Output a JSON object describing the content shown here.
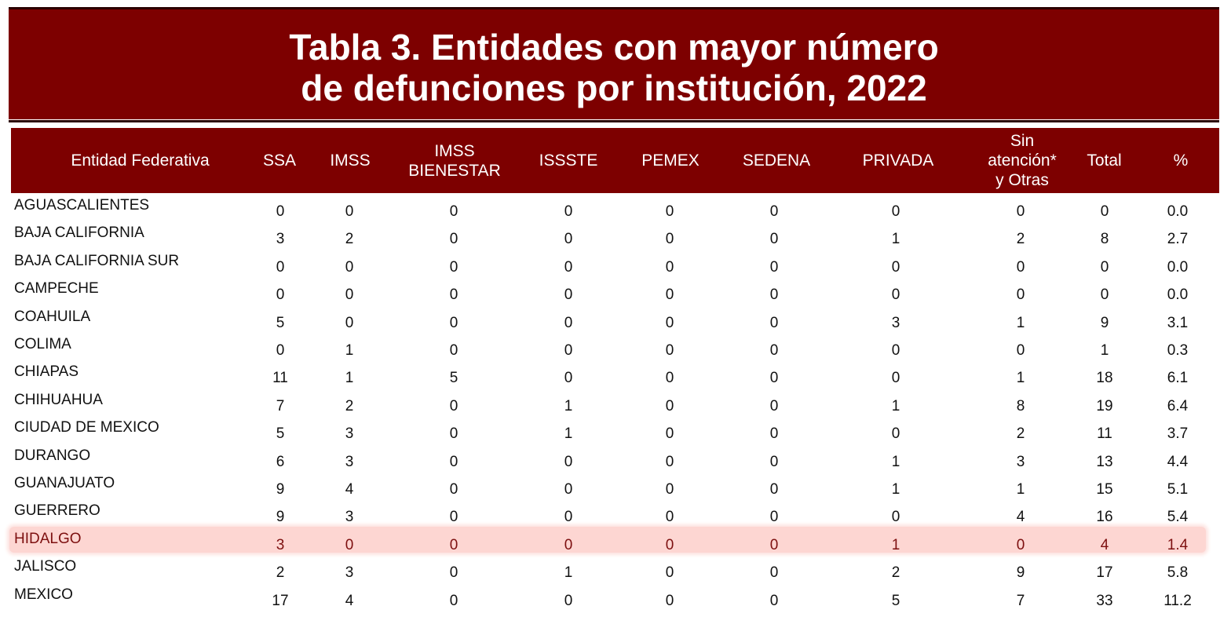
{
  "title": {
    "line1": "Tabla 3. Entidades con mayor número",
    "line2": "de defunciones por institución, 2022"
  },
  "colors": {
    "header_bg": "#7d0000",
    "highlight_bg": "#fdd6d2",
    "highlight_text": "#7d1010"
  },
  "columns": [
    {
      "id": "entidad",
      "label": "Entidad Federativa"
    },
    {
      "id": "ssa",
      "label": "SSA"
    },
    {
      "id": "imss",
      "label": "IMSS"
    },
    {
      "id": "imss_bienestar",
      "label": "IMSS BIENESTAR",
      "line1": "IMSS",
      "line2": "BIENESTAR"
    },
    {
      "id": "issste",
      "label": "ISSSTE"
    },
    {
      "id": "pemex",
      "label": "PEMEX"
    },
    {
      "id": "sedena",
      "label": "SEDENA"
    },
    {
      "id": "privada",
      "label": "PRIVADA"
    },
    {
      "id": "sin_atencion",
      "label": "Sin atención* y Otras",
      "line1": "Sin",
      "line2": "atención*",
      "line3": "y Otras"
    },
    {
      "id": "total",
      "label": "Total"
    },
    {
      "id": "pct",
      "label": "%"
    }
  ],
  "rows": [
    {
      "entidad": "AGUASCALIENTES",
      "values": [
        "0",
        "0",
        "0",
        "0",
        "0",
        "0",
        "0",
        "0",
        "0",
        "0.0"
      ]
    },
    {
      "entidad": "BAJA CALIFORNIA",
      "values": [
        "3",
        "2",
        "0",
        "0",
        "0",
        "0",
        "1",
        "2",
        "8",
        "2.7"
      ]
    },
    {
      "entidad": "BAJA CALIFORNIA SUR",
      "values": [
        "0",
        "0",
        "0",
        "0",
        "0",
        "0",
        "0",
        "0",
        "0",
        "0.0"
      ]
    },
    {
      "entidad": "CAMPECHE",
      "values": [
        "0",
        "0",
        "0",
        "0",
        "0",
        "0",
        "0",
        "0",
        "0",
        "0.0"
      ]
    },
    {
      "entidad": "COAHUILA",
      "values": [
        "5",
        "0",
        "0",
        "0",
        "0",
        "0",
        "3",
        "1",
        "9",
        "3.1"
      ]
    },
    {
      "entidad": "COLIMA",
      "values": [
        "0",
        "1",
        "0",
        "0",
        "0",
        "0",
        "0",
        "0",
        "1",
        "0.3"
      ]
    },
    {
      "entidad": "CHIAPAS",
      "values": [
        "11",
        "1",
        "5",
        "0",
        "0",
        "0",
        "0",
        "1",
        "18",
        "6.1"
      ]
    },
    {
      "entidad": "CHIHUAHUA",
      "values": [
        "7",
        "2",
        "0",
        "1",
        "0",
        "0",
        "1",
        "8",
        "19",
        "6.4"
      ]
    },
    {
      "entidad": "CIUDAD DE MEXICO",
      "values": [
        "5",
        "3",
        "0",
        "1",
        "0",
        "0",
        "0",
        "2",
        "11",
        "3.7"
      ]
    },
    {
      "entidad": "DURANGO",
      "values": [
        "6",
        "3",
        "0",
        "0",
        "0",
        "0",
        "1",
        "3",
        "13",
        "4.4"
      ]
    },
    {
      "entidad": "GUANAJUATO",
      "values": [
        "9",
        "4",
        "0",
        "0",
        "0",
        "0",
        "1",
        "1",
        "15",
        "5.1"
      ]
    },
    {
      "entidad": "GUERRERO",
      "values": [
        "9",
        "3",
        "0",
        "0",
        "0",
        "0",
        "0",
        "4",
        "16",
        "5.4"
      ]
    },
    {
      "entidad": "HIDALGO",
      "values": [
        "3",
        "0",
        "0",
        "0",
        "0",
        "0",
        "1",
        "0",
        "4",
        "1.4"
      ],
      "highlighted": true
    },
    {
      "entidad": "JALISCO",
      "values": [
        "2",
        "3",
        "0",
        "1",
        "0",
        "0",
        "2",
        "9",
        "17",
        "5.8"
      ]
    },
    {
      "entidad": "MEXICO",
      "values": [
        "17",
        "4",
        "0",
        "0",
        "0",
        "0",
        "5",
        "7",
        "33",
        "11.2"
      ]
    }
  ]
}
